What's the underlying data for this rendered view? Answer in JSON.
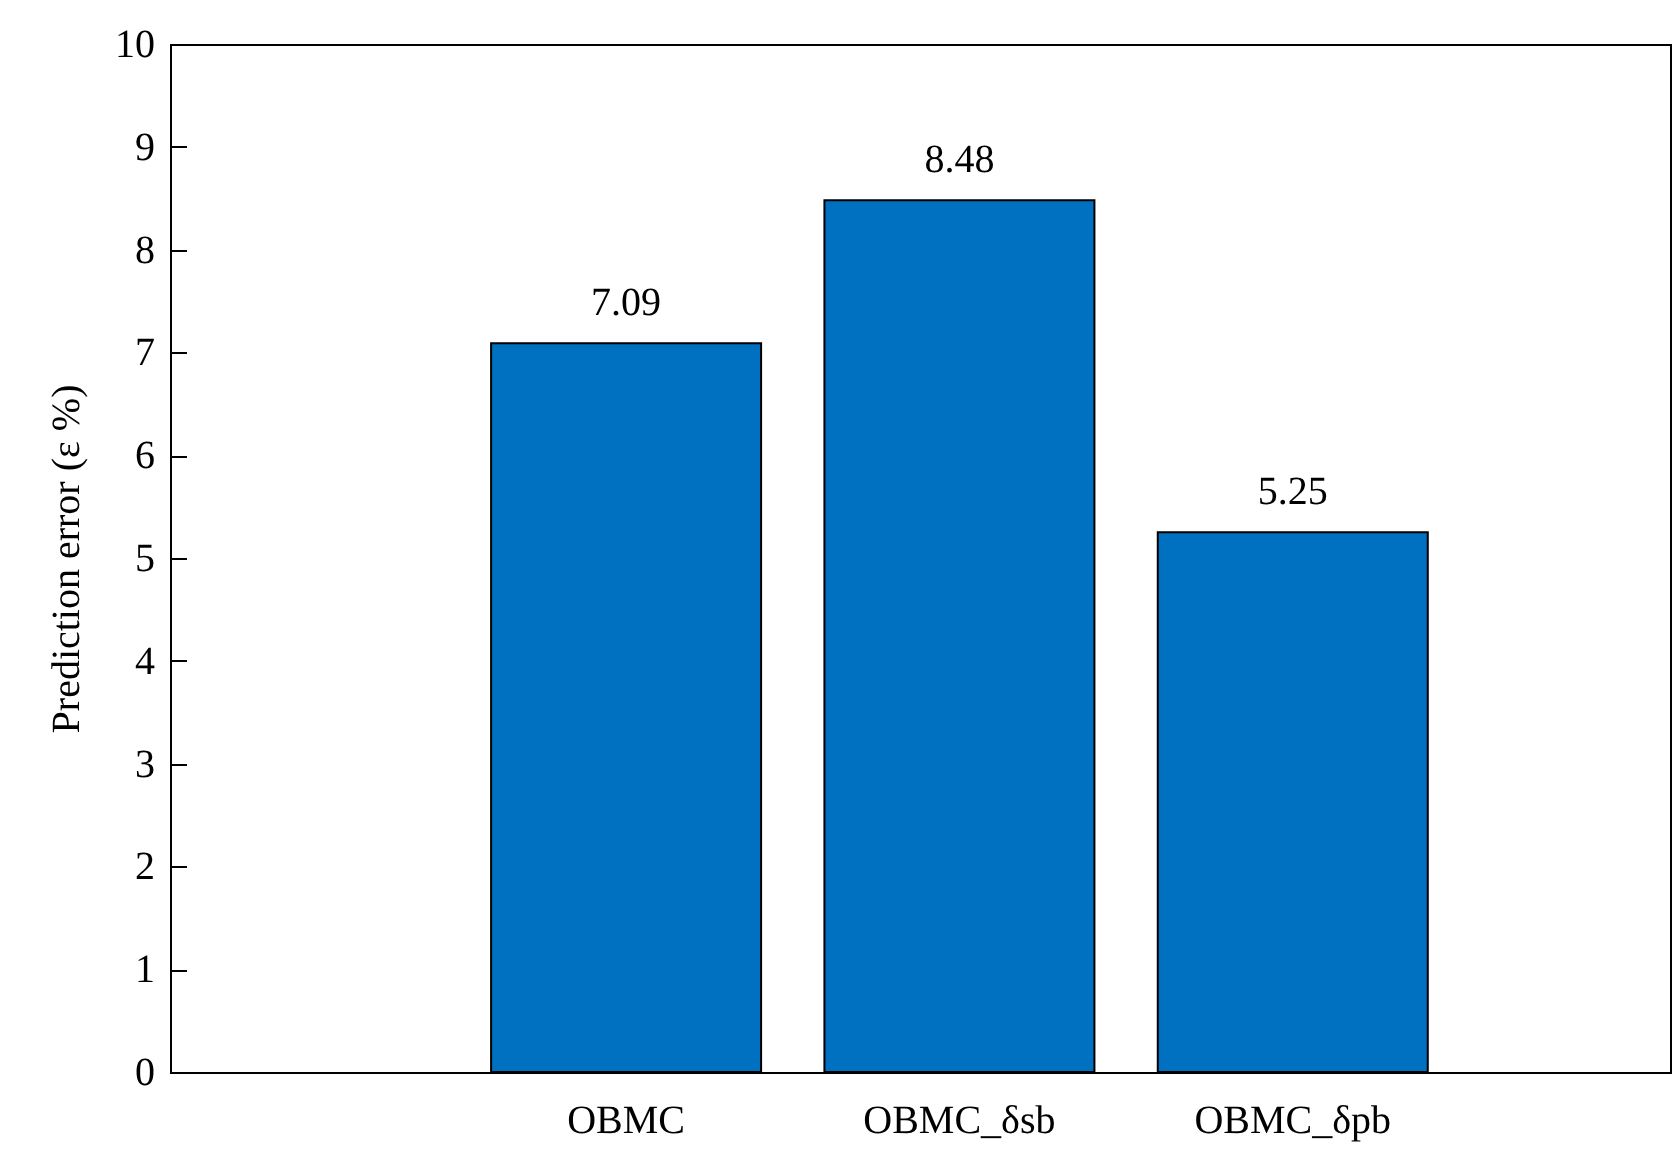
{
  "chart_data": {
    "type": "bar",
    "ylabel": "Prediction error (ε %)",
    "categories": [
      "OBMC",
      "OBMC_δsb",
      "OBMC_δpb"
    ],
    "values": [
      7.09,
      8.48,
      5.25
    ],
    "color": "#0070c0",
    "ylim": [
      0,
      10
    ],
    "yticks": [
      0,
      1,
      2,
      3,
      4,
      5,
      6,
      7,
      8,
      9,
      10
    ],
    "grid": false,
    "data_labels": true
  }
}
